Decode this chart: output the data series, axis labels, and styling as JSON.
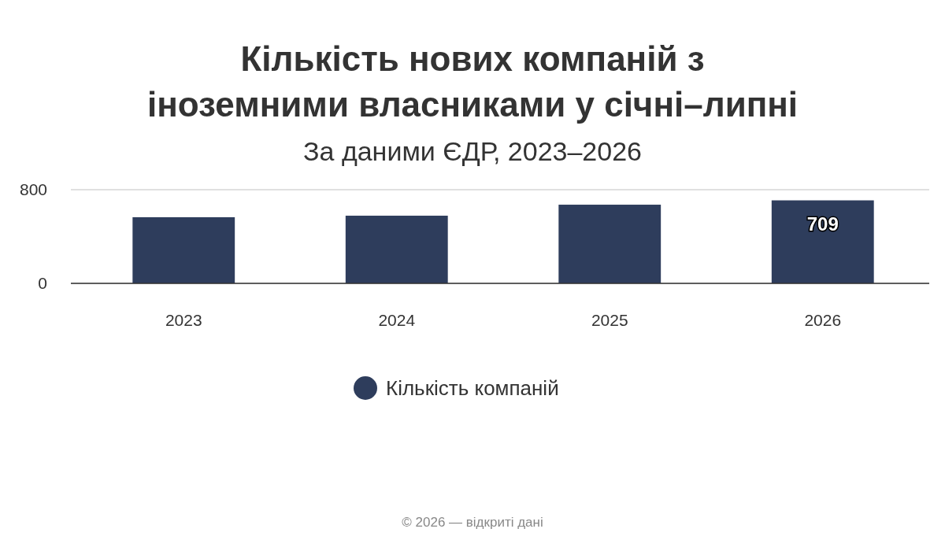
{
  "chart_data": {
    "type": "bar",
    "title": "Кількість нових компаній з\nіноземними власниками у січні–липні",
    "subtitle": "За даними ЄДР, 2023–2026",
    "categories": [
      "2023",
      "2024",
      "2025",
      "2026"
    ],
    "series": [
      {
        "name": "Кількість компаній",
        "color": "#2e3d5c",
        "values": [
          565,
          578,
          672,
          709
        ],
        "value_labels": [
          null,
          null,
          null,
          "709"
        ]
      }
    ],
    "ylim": [
      0,
      800
    ],
    "yticks": [
      0,
      800
    ],
    "grid": "y",
    "legend": "bottom",
    "annotations": [
      "© 2026 — відкриті дані"
    ]
  }
}
